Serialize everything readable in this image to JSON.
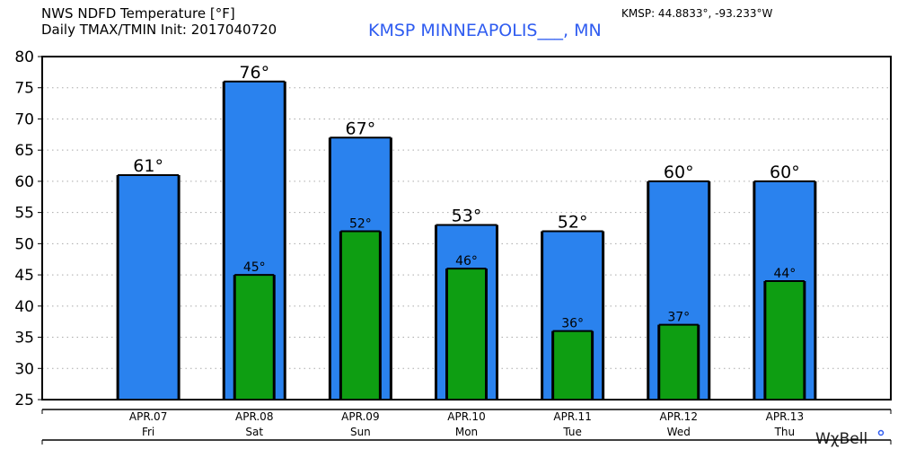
{
  "header": {
    "title_line1": "NWS NDFD Temperature [°F]",
    "title_line2": "Daily TMAX/TMIN Init: 2017040720",
    "station": "KMSP MINNEAPOLIS___, MN",
    "coords": "KMSP: 44.8833°, -93.233°W",
    "logo": "WχBell"
  },
  "chart_data": {
    "type": "bar",
    "categories": [
      "APR.07",
      "APR.08",
      "APR.09",
      "APR.10",
      "APR.11",
      "APR.12",
      "APR.13"
    ],
    "weekdays": [
      "Fri",
      "Sat",
      "Sun",
      "Mon",
      "Tue",
      "Wed",
      "Thu"
    ],
    "series": [
      {
        "name": "TMAX",
        "color": "#2a82ee",
        "values": [
          61,
          76,
          67,
          53,
          52,
          60,
          60
        ],
        "labels": [
          "61°",
          "76°",
          "67°",
          "53°",
          "52°",
          "60°",
          "60°"
        ]
      },
      {
        "name": "TMIN",
        "color": "#0e9e12",
        "values": [
          null,
          45,
          52,
          46,
          36,
          37,
          44
        ],
        "labels": [
          "",
          "45°",
          "52°",
          "46°",
          "36°",
          "37°",
          "44°"
        ]
      }
    ],
    "yticks": [
      25,
      30,
      35,
      40,
      45,
      50,
      55,
      60,
      65,
      70,
      75,
      80
    ],
    "ylim": [
      25,
      80
    ],
    "grid": "dotted horizontal"
  }
}
